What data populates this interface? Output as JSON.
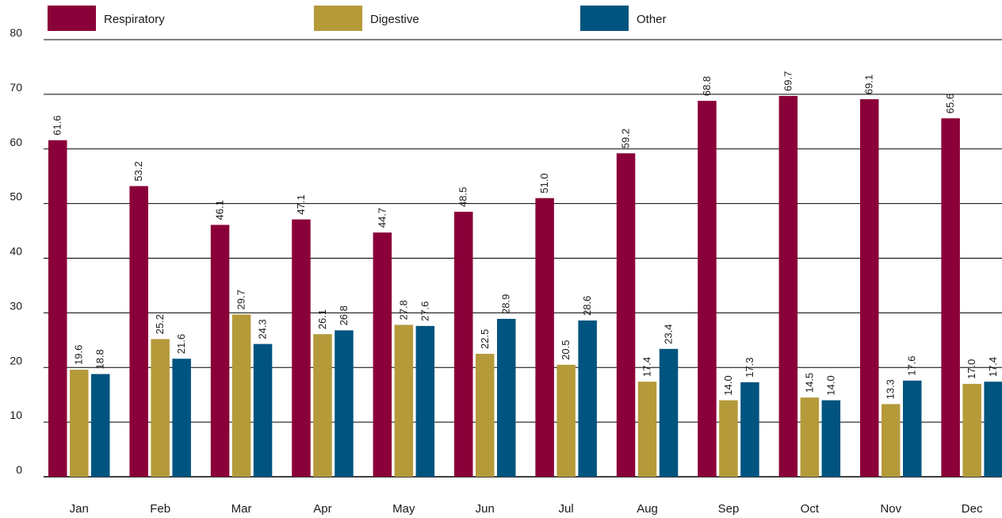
{
  "chart_data": {
    "type": "bar",
    "categories": [
      "Jan",
      "Feb",
      "Mar",
      "Apr",
      "May",
      "Jun",
      "Jul",
      "Aug",
      "Sep",
      "Oct",
      "Nov",
      "Dec"
    ],
    "series": [
      {
        "name": "Respiratory",
        "color": "#8a0038",
        "values": [
          61.6,
          53.2,
          46.1,
          47.1,
          44.7,
          48.5,
          51.0,
          59.2,
          68.8,
          69.7,
          69.1,
          65.6
        ]
      },
      {
        "name": "Digestive",
        "color": "#b59a3a",
        "values": [
          19.6,
          25.2,
          29.7,
          26.1,
          27.8,
          22.5,
          20.5,
          17.4,
          14.0,
          14.5,
          13.3,
          17.0
        ]
      },
      {
        "name": "Other",
        "color": "#00547f",
        "values": [
          18.8,
          21.6,
          24.3,
          26.8,
          27.6,
          28.9,
          28.6,
          23.4,
          17.3,
          14.0,
          17.6,
          17.4
        ]
      }
    ],
    "ylim": [
      0,
      80
    ],
    "yticks": [
      0,
      10,
      20,
      30,
      40,
      50,
      60,
      70,
      80
    ],
    "grid": true,
    "legend_position": "top",
    "data_labels": "rotated"
  }
}
